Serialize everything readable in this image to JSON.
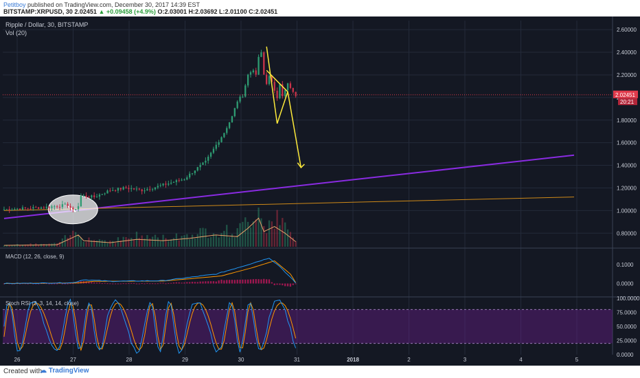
{
  "header": {
    "author": "Petitboy",
    "published": "published on TradingView.com, December 30, 2017 14:39 EST",
    "symbol": "BITSTAMP:XRPUSD, 30",
    "last": "2.02451",
    "change": "+0.09458 (+4.9%)",
    "open": "O:2.03001",
    "high": "H:2.03692",
    "low": "L:2.01100",
    "close": "C:2.02451"
  },
  "footer": {
    "created": "Created with",
    "brand": "TradingView"
  },
  "chart_data": {
    "type": "candlestick",
    "title": "Ripple / Dollar, 30, BITSTAMP",
    "volume_label": "Vol (20)",
    "x_ticks": [
      "26",
      "27",
      "28",
      "29",
      "30",
      "31",
      "2018",
      "2",
      "3",
      "4",
      "5"
    ],
    "price_ticks": [
      "2.60000",
      "2.40000",
      "2.20000",
      "2.00000",
      "1.80000",
      "1.60000",
      "1.40000",
      "1.20000",
      "1.00000",
      "0.80000"
    ],
    "ylim": [
      0.68,
      2.68
    ],
    "last_price": 2.02451,
    "last_price_label": "2.02451",
    "countdown_label": "20:21",
    "price_anchors": [
      [
        0,
        1.01
      ],
      [
        8,
        1.02
      ],
      [
        16,
        1.03
      ],
      [
        24,
        1.05
      ],
      [
        26,
        1.0
      ],
      [
        28,
        1.04
      ],
      [
        29,
        1.13
      ],
      [
        34,
        1.12
      ],
      [
        40,
        1.18
      ],
      [
        46,
        1.2
      ],
      [
        52,
        1.18
      ],
      [
        56,
        1.2
      ],
      [
        62,
        1.24
      ],
      [
        68,
        1.28
      ],
      [
        72,
        1.36
      ],
      [
        76,
        1.43
      ],
      [
        80,
        1.58
      ],
      [
        83,
        1.69
      ],
      [
        86,
        1.83
      ],
      [
        88,
        1.97
      ],
      [
        90,
        2.02
      ],
      [
        92,
        2.2
      ],
      [
        94,
        2.25
      ],
      [
        95,
        2.19
      ],
      [
        96,
        2.36
      ],
      [
        97,
        2.39
      ],
      [
        98,
        2.2
      ],
      [
        99,
        2.12
      ],
      [
        100,
        2.2
      ],
      [
        101,
        2.13
      ],
      [
        102,
        2.05
      ],
      [
        103,
        2.0
      ],
      [
        104,
        2.13
      ],
      [
        105,
        2.02
      ],
      [
        106,
        2.06
      ],
      [
        107,
        2.12
      ],
      [
        108,
        2.08
      ],
      [
        109,
        2.04
      ],
      [
        110,
        2.02
      ]
    ],
    "volume_anchors": [
      [
        0,
        0.04
      ],
      [
        20,
        0.06
      ],
      [
        28,
        0.35
      ],
      [
        30,
        0.18
      ],
      [
        40,
        0.12
      ],
      [
        50,
        0.22
      ],
      [
        60,
        0.18
      ],
      [
        70,
        0.25
      ],
      [
        80,
        0.35
      ],
      [
        88,
        0.3
      ],
      [
        92,
        0.55
      ],
      [
        96,
        0.85
      ],
      [
        98,
        0.45
      ],
      [
        102,
        0.6
      ],
      [
        106,
        0.4
      ],
      [
        110,
        0.15
      ]
    ],
    "trendlines": [
      {
        "name": "purple-trend",
        "color": "#8a2be2",
        "from": [
          0,
          0.93
        ],
        "to": [
          215,
          1.49
        ]
      },
      {
        "name": "orange-trend",
        "color": "#d08a18",
        "from": [
          0,
          1.0
        ],
        "to": [
          215,
          1.12
        ]
      }
    ],
    "annotations": {
      "color": "#ffeb3b",
      "pennant": [
        [
          99,
          2.45
        ],
        [
          103,
          1.77
        ],
        [
          107,
          2.05
        ],
        [
          99,
          2.24
        ]
      ],
      "arrow": [
        [
          107,
          2.05
        ],
        [
          112,
          1.38
        ]
      ]
    },
    "macd": {
      "label": "MACD (12, 26, close, 9)",
      "ticks": [
        "0.1000",
        "0.0000"
      ],
      "ylim": [
        -0.06,
        0.18
      ]
    },
    "stoch_rsi": {
      "label": "Stoch RSI (3, 3, 14, 14, close)",
      "ticks": [
        "100.0000",
        "75.0000",
        "50.0000",
        "25.0000",
        "0.0000"
      ],
      "ylim": [
        0,
        100
      ],
      "bands": [
        80,
        20
      ]
    },
    "colors": {
      "background": "#141823",
      "grid": "#232a3a",
      "up": "#2e9b72",
      "down": "#c9334a",
      "last_price": "#e03a4b",
      "axis_text": "#c8ccd6"
    }
  }
}
